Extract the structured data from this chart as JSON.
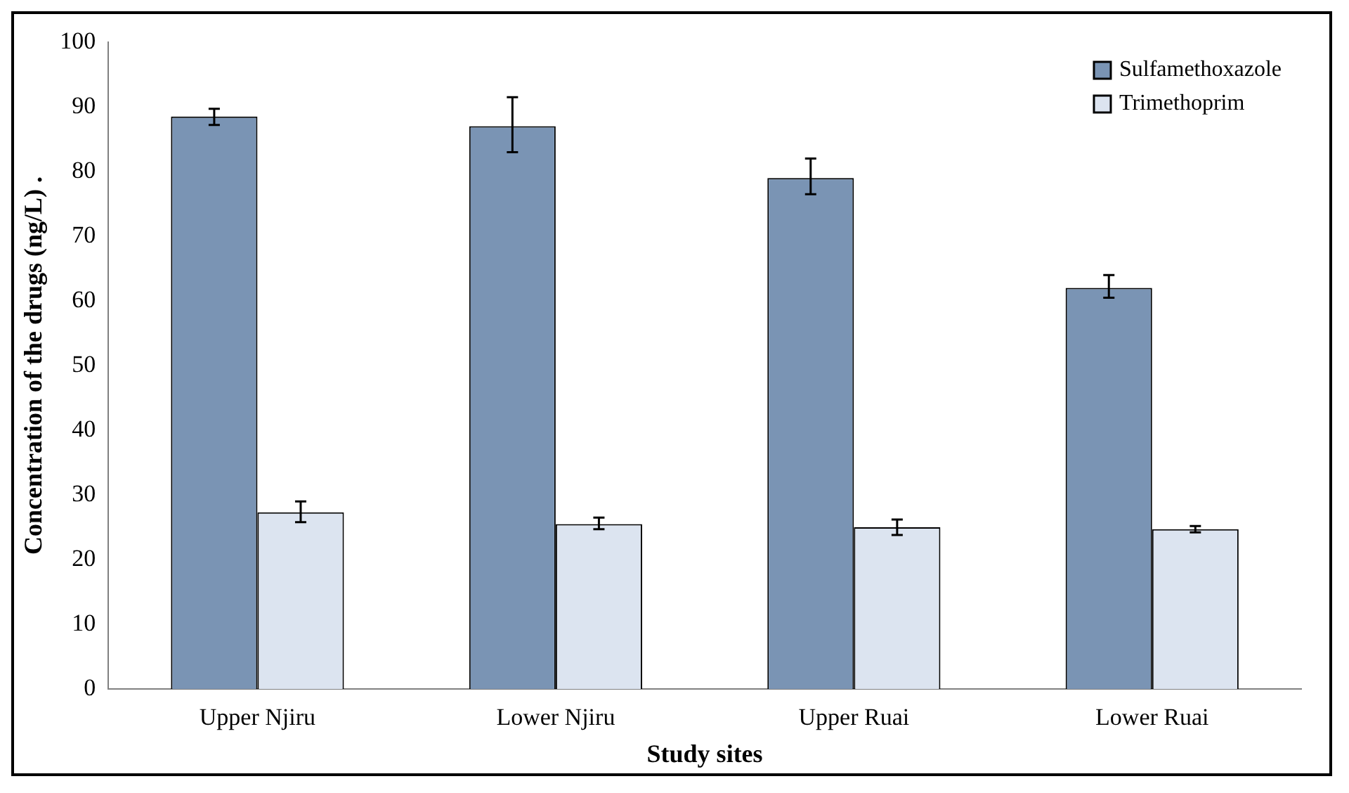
{
  "chart_data": {
    "type": "bar",
    "xlabel": "Study sites",
    "ylabel": "Concentration of the drugs (ng/L) .",
    "categories": [
      "Upper Njiru",
      "Lower Njiru",
      "Upper Ruai",
      "Lower Ruai"
    ],
    "series": [
      {
        "name": "Sulfamethoxazole",
        "color": "#7a94b4",
        "values": [
          88.5,
          87,
          79,
          62
        ],
        "errors": [
          [
            87.2,
            89.7
          ],
          [
            83,
            91.5
          ],
          [
            76.5,
            82
          ],
          [
            60.5,
            64
          ]
        ]
      },
      {
        "name": "Trimethoprim",
        "color": "#dce4f0",
        "values": [
          27.3,
          25.5,
          25,
          24.7
        ],
        "errors": [
          [
            25.8,
            29
          ],
          [
            24.7,
            26.5
          ],
          [
            23.8,
            26.2
          ],
          [
            24.2,
            25.2
          ]
        ]
      }
    ],
    "ylim": [
      0,
      100
    ],
    "yticks": [
      0,
      10,
      20,
      30,
      40,
      50,
      60,
      70,
      80,
      90,
      100
    ],
    "grid": false,
    "legend": "top right"
  }
}
